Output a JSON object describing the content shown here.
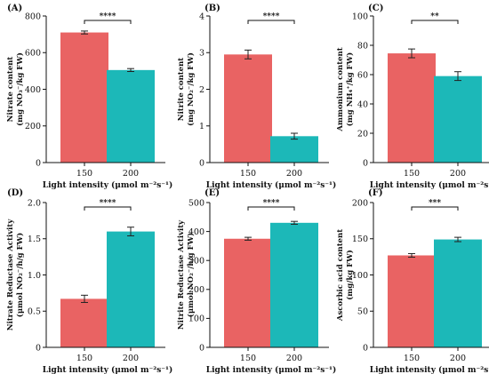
{
  "colors": {
    "bar_150": "#e96363",
    "bar_200": "#1cb8b8"
  },
  "chart_data": [
    {
      "type": "bar",
      "panel": "(A)",
      "categories": [
        "150",
        "200"
      ],
      "values": [
        710,
        505
      ],
      "errors": [
        8,
        8
      ],
      "ylim": [
        0,
        800
      ],
      "yticks": [
        "0",
        "200",
        "400",
        "600",
        "800"
      ],
      "ytick_values": [
        0,
        200,
        400,
        600,
        800
      ],
      "ylabel": [
        "Nitrate content",
        "(mg NO₃⁻/kg FW)"
      ],
      "xlabel": "Light intensity (μmol m⁻²s⁻¹)",
      "significance": "****",
      "grid": false
    },
    {
      "type": "bar",
      "panel": "(B)",
      "categories": [
        "150",
        "200"
      ],
      "values": [
        2.95,
        0.72
      ],
      "errors": [
        0.12,
        0.08
      ],
      "ylim": [
        0,
        4
      ],
      "yticks": [
        "0",
        "1",
        "2",
        "3",
        "4"
      ],
      "ytick_values": [
        0,
        1,
        2,
        3,
        4
      ],
      "ylabel": [
        "Nitrite content",
        "(mg NO₂⁻/kg FW)"
      ],
      "xlabel": "Light intensity (μmol m⁻²s⁻¹)",
      "significance": "****",
      "grid": false
    },
    {
      "type": "bar",
      "panel": "(C)",
      "categories": [
        "150",
        "200"
      ],
      "values": [
        74.5,
        59
      ],
      "errors": [
        3,
        3
      ],
      "ylim": [
        0,
        100
      ],
      "yticks": [
        "0",
        "20",
        "40",
        "60",
        "80",
        "100"
      ],
      "ytick_values": [
        0,
        20,
        40,
        60,
        80,
        100
      ],
      "ylabel": [
        "Ammonium content",
        "(mg NH₄⁺/kg FW)"
      ],
      "xlabel": "Light intensity (μmol m⁻²s⁻¹)",
      "significance": "**",
      "grid": false
    },
    {
      "type": "bar",
      "panel": "(D)",
      "categories": [
        "150",
        "200"
      ],
      "values": [
        0.67,
        1.6
      ],
      "errors": [
        0.05,
        0.06
      ],
      "ylim": [
        0,
        2.0
      ],
      "yticks": [
        "0",
        "0.5",
        "1.0",
        "1.5",
        "2.0"
      ],
      "ytick_values": [
        0,
        0.5,
        1.0,
        1.5,
        2.0
      ],
      "ylabel": [
        "Nitrate Reductase Activity",
        "(μmol NO₂⁻/h/g FW)"
      ],
      "xlabel": "Light intensity (μmol m⁻²s⁻¹)",
      "significance": "****",
      "grid": false
    },
    {
      "type": "bar",
      "panel": "(E)",
      "categories": [
        "150",
        "200"
      ],
      "values": [
        375,
        430
      ],
      "errors": [
        5,
        5
      ],
      "ylim": [
        0,
        500
      ],
      "yticks": [
        "0",
        "100",
        "200",
        "300",
        "400",
        "500"
      ],
      "ytick_values": [
        0,
        100,
        200,
        300,
        400,
        500
      ],
      "ylabel": [
        "Nitrite Reductase Activity",
        "(μmol NO₂⁻/h/g FW)"
      ],
      "xlabel": "Light intensity (μmol m⁻²s⁻¹)",
      "significance": "****",
      "grid": false
    },
    {
      "type": "bar",
      "panel": "(F)",
      "categories": [
        "150",
        "200"
      ],
      "values": [
        127,
        149
      ],
      "errors": [
        2.5,
        3
      ],
      "ylim": [
        0,
        200
      ],
      "yticks": [
        "0",
        "50",
        "100",
        "150",
        "200"
      ],
      "ytick_values": [
        0,
        50,
        100,
        150,
        200
      ],
      "ylabel": [
        "Ascorbic acid content",
        "(mg/kg FW)"
      ],
      "xlabel": "Light intensity (μmol m⁻²s⁻¹)",
      "significance": "***",
      "grid": false
    }
  ]
}
